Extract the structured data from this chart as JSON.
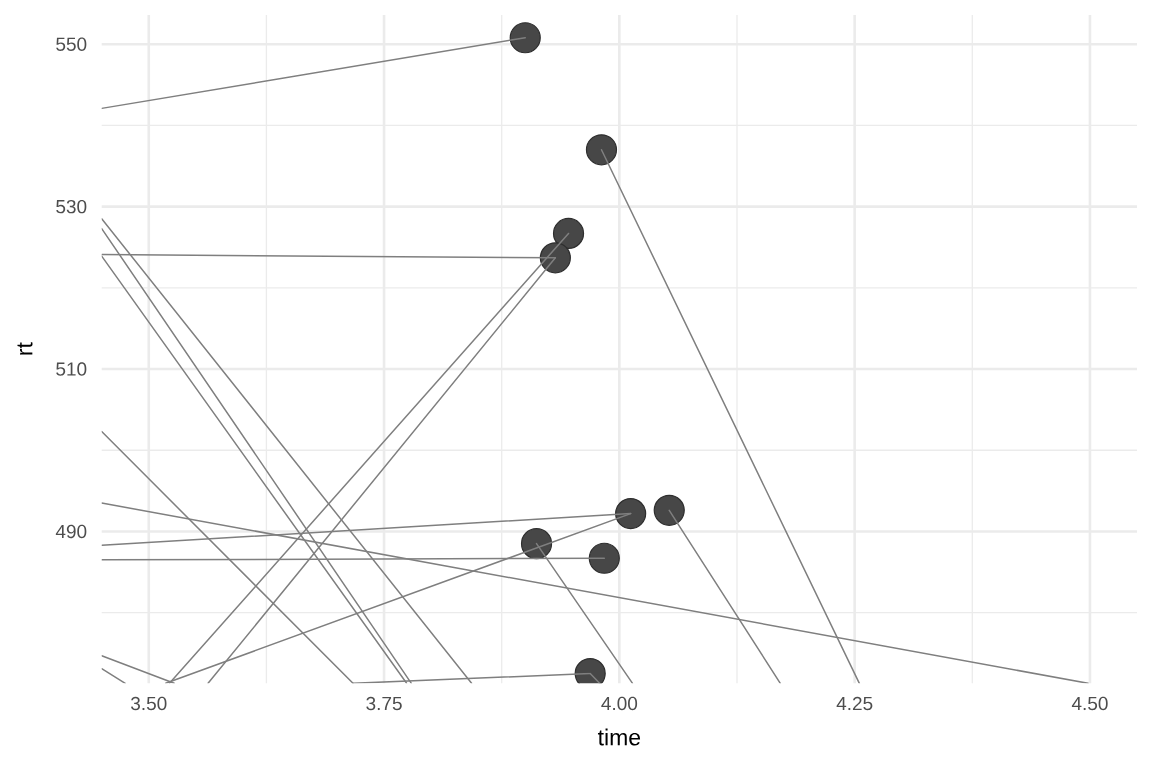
{
  "chart_data": {
    "type": "line",
    "xlabel": "time",
    "ylabel": "rt",
    "xlim": [
      3.45,
      4.55
    ],
    "ylim": [
      471.3,
      553.6
    ],
    "xticks": [
      {
        "value": 3.5,
        "label": "3.50"
      },
      {
        "value": 3.625,
        "label": null
      },
      {
        "value": 3.75,
        "label": "3.75"
      },
      {
        "value": 3.875,
        "label": null
      },
      {
        "value": 4.0,
        "label": "4.00"
      },
      {
        "value": 4.125,
        "label": null
      },
      {
        "value": 4.25,
        "label": "4.25"
      },
      {
        "value": 4.375,
        "label": null
      },
      {
        "value": 4.5,
        "label": "4.50"
      }
    ],
    "yticks": [
      {
        "value": 480,
        "label": null
      },
      490,
      {
        "value": 500,
        "label": null
      },
      510,
      {
        "value": 520,
        "label": null
      },
      530,
      {
        "value": 540,
        "label": null
      },
      550
    ],
    "grid": true,
    "series": [
      {
        "type": "scatter",
        "color": "#474747",
        "marker": "circle",
        "x": [
          3.9,
          3.981,
          3.946,
          3.932,
          4.012,
          4.053,
          3.912,
          3.984,
          3.969
        ],
        "values": [
          550.8,
          537.0,
          526.7,
          523.7,
          492.2,
          492.6,
          488.5,
          486.7,
          472.5
        ]
      },
      {
        "color": "#7f7f7f",
        "x": [
          3.45,
          3.9
        ],
        "values": [
          542.1,
          550.8
        ]
      },
      {
        "color": "#7f7f7f",
        "x": [
          3.981,
          4.255
        ],
        "values": [
          537.0,
          471.3
        ]
      },
      {
        "color": "#7f7f7f",
        "x": [
          3.45,
          3.932
        ],
        "values": [
          524.1,
          523.7
        ]
      },
      {
        "color": "#7f7f7f",
        "x": [
          3.522,
          3.946
        ],
        "values": [
          471.3,
          526.7
        ]
      },
      {
        "color": "#7f7f7f",
        "x": [
          3.563,
          3.932
        ],
        "values": [
          471.3,
          523.7
        ]
      },
      {
        "color": "#7f7f7f",
        "x": [
          3.45,
          4.012
        ],
        "values": [
          488.3,
          492.2
        ]
      },
      {
        "color": "#7f7f7f",
        "x": [
          3.518,
          4.012
        ],
        "values": [
          471.3,
          492.2
        ]
      },
      {
        "color": "#7f7f7f",
        "x": [
          3.912,
          4.014
        ],
        "values": [
          488.5,
          471.3
        ]
      },
      {
        "color": "#7f7f7f",
        "x": [
          3.45,
          3.984
        ],
        "values": [
          486.5,
          486.7
        ]
      },
      {
        "color": "#7f7f7f",
        "x": [
          4.053,
          4.171
        ],
        "values": [
          492.6,
          471.3
        ]
      },
      {
        "color": "#7f7f7f",
        "x": [
          3.45,
          4.498
        ],
        "values": [
          493.5,
          471.3
        ]
      },
      {
        "color": "#7f7f7f",
        "x": [
          3.717,
          3.969
        ],
        "values": [
          471.3,
          472.5
        ]
      },
      {
        "color": "#7f7f7f",
        "x": [
          3.969,
          3.979
        ],
        "values": [
          472.5,
          471.3
        ]
      },
      {
        "color": "#7f7f7f",
        "x": [
          3.45,
          3.843
        ],
        "values": [
          528.5,
          471.3
        ]
      },
      {
        "color": "#7f7f7f",
        "x": [
          3.45,
          3.779
        ],
        "values": [
          527.3,
          471.3
        ]
      },
      {
        "color": "#7f7f7f",
        "x": [
          3.45,
          3.774
        ],
        "values": [
          523.9,
          471.3
        ]
      },
      {
        "color": "#7f7f7f",
        "x": [
          3.45,
          3.717
        ],
        "values": [
          502.3,
          471.3
        ]
      },
      {
        "color": "#7f7f7f",
        "x": [
          3.45,
          3.527
        ],
        "values": [
          474.7,
          471.3
        ]
      },
      {
        "color": "#7f7f7f",
        "x": [
          3.45,
          3.475
        ],
        "values": [
          473.1,
          471.3
        ]
      }
    ]
  }
}
